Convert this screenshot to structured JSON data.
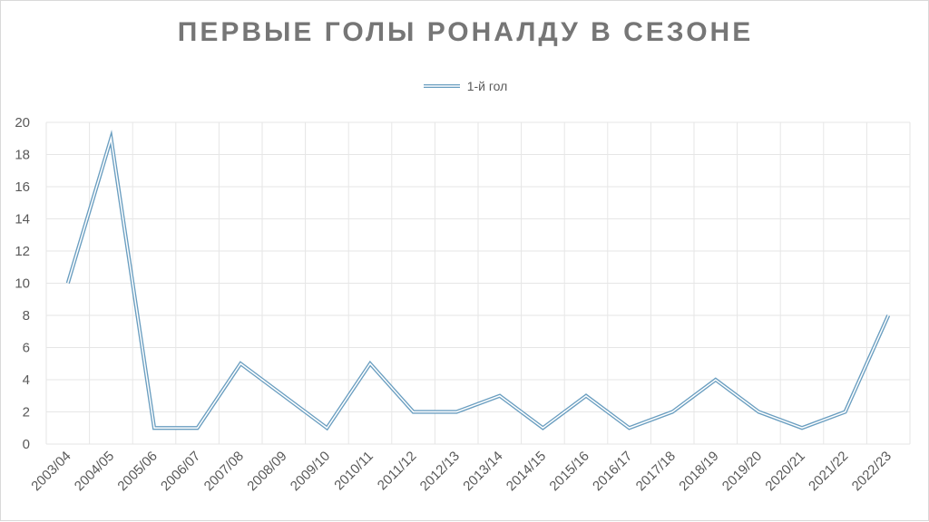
{
  "chart_data": {
    "type": "line",
    "title": "ПЕРВЫЕ ГОЛЫ РОНАЛДУ В СЕЗОНЕ",
    "xlabel": "",
    "ylabel": "",
    "ylim": [
      0,
      20
    ],
    "yticks": [
      "0",
      "2",
      "4",
      "6",
      "8",
      "10",
      "12",
      "14",
      "16",
      "18",
      "20"
    ],
    "grid": true,
    "legend_position": "top",
    "categories": [
      "2003/04",
      "2004/05",
      "2005/06",
      "2006/07",
      "2007/08",
      "2008/09",
      "2009/10",
      "2010/11",
      "2011/12",
      "2012/13",
      "2013/14",
      "2014/15",
      "2015/16",
      "2016/17",
      "2017/18",
      "2018/19",
      "2019/20",
      "2020/21",
      "2021/22",
      "2022/23"
    ],
    "series": [
      {
        "name": "1-й гол",
        "color": "#6a9ec0",
        "values": [
          10,
          19,
          1,
          1,
          5,
          3,
          1,
          5,
          2,
          2,
          3,
          1,
          3,
          1,
          2,
          4,
          2,
          1,
          2,
          8
        ]
      }
    ]
  }
}
